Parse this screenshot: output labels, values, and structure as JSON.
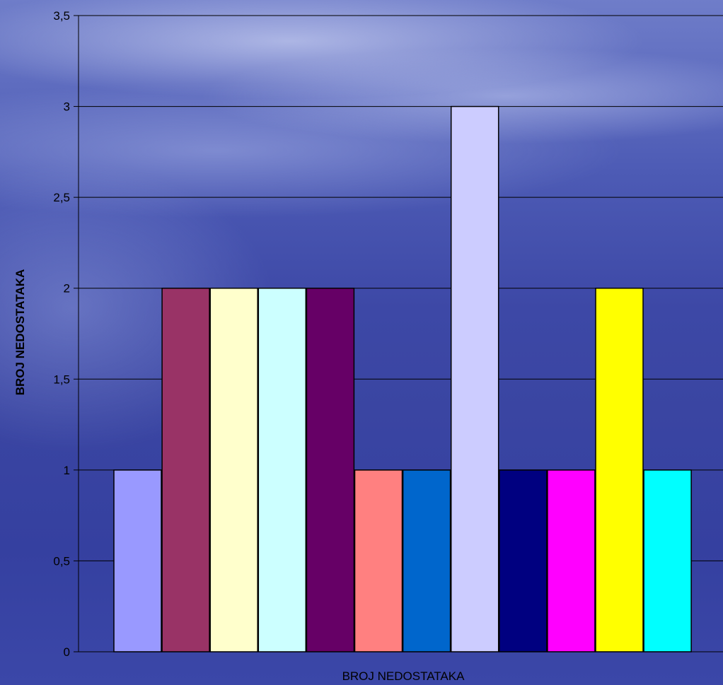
{
  "chart_data": {
    "type": "bar",
    "xlabel": "BROJ NEDOSTATAKA",
    "ylabel": "BROJ NEDOSTATAKA",
    "ylim": [
      0,
      3.5
    ],
    "yticks": [
      "0",
      "0,5",
      "1",
      "1,5",
      "2",
      "2,5",
      "3",
      "3,5"
    ],
    "ytick_values": [
      0,
      0.5,
      1,
      1.5,
      2,
      2.5,
      3,
      3.5
    ],
    "grid": true,
    "values": [
      1,
      2,
      2,
      2,
      2,
      1,
      1,
      3,
      1,
      1,
      2,
      1
    ],
    "colors": [
      "#9999ff",
      "#993366",
      "#ffffcc",
      "#ccffff",
      "#660066",
      "#ff8080",
      "#0066cc",
      "#ccccff",
      "#000080",
      "#ff00ff",
      "#ffff00",
      "#00ffff"
    ]
  }
}
